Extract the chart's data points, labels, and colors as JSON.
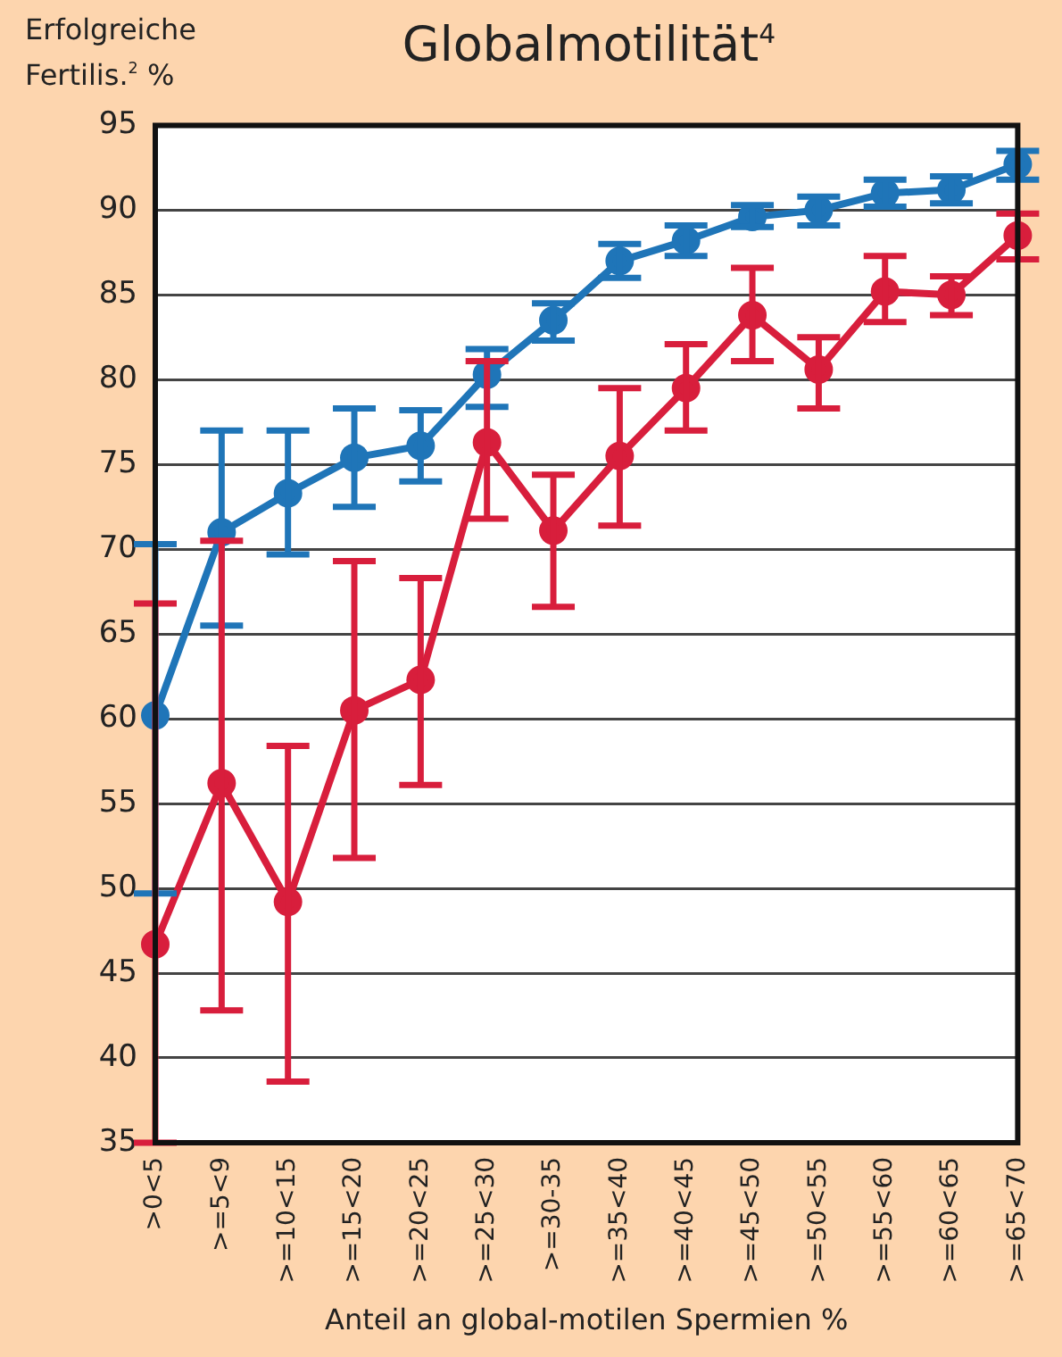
{
  "chart_data": {
    "type": "line",
    "title": "Globalmotilität$^{4}$",
    "ylabel": "Erfolgreiche Fertilis.$^{2}$ %",
    "xlabel": "Anteil an global-motilen Spermien %",
    "categories": [
      ">0<5",
      ">=5<9",
      ">=10<15",
      ">=15<20",
      ">=20<25",
      ">=25<30",
      ">=30-35",
      ">=35<40",
      ">=40<45",
      ">=45<50",
      ">=50<55",
      ">=55<60",
      ">=60<65",
      ">=65<70"
    ],
    "series": [
      {
        "color": "#1f75b8",
        "values": [
          60.2,
          71,
          73.3,
          75.4,
          76.1,
          80.3,
          83.5,
          87,
          88.2,
          89.6,
          90,
          91,
          91.2,
          92.7
        ],
        "errors": [
          [
            49.7,
            70.3
          ],
          [
            65.5,
            77
          ],
          [
            69.7,
            77
          ],
          [
            72.5,
            78.3
          ],
          [
            74,
            78.2
          ],
          [
            78.4,
            81.8
          ],
          [
            82.3,
            84.5
          ],
          [
            86,
            88
          ],
          [
            87.3,
            89.1
          ],
          [
            89,
            90.3
          ],
          [
            89.1,
            90.8
          ],
          [
            90.2,
            91.8
          ],
          [
            90.4,
            92
          ],
          [
            91.8,
            93.5
          ]
        ]
      },
      {
        "color": "#d81e3c",
        "values": [
          46.7,
          56.2,
          49.2,
          60.5,
          62.3,
          76.3,
          71.1,
          75.5,
          79.5,
          83.8,
          80.6,
          85.2,
          85,
          88.5
        ],
        "errors": [
          [
            35,
            66.8
          ],
          [
            42.8,
            70.5
          ],
          [
            38.6,
            58.4
          ],
          [
            51.8,
            69.3
          ],
          [
            56.1,
            68.3
          ],
          [
            71.8,
            81.1
          ],
          [
            66.6,
            74.4
          ],
          [
            71.4,
            79.5
          ],
          [
            77,
            82.1
          ],
          [
            81.1,
            86.6
          ],
          [
            78.3,
            82.5
          ],
          [
            83.4,
            87.3
          ],
          [
            83.8,
            86.1
          ],
          [
            87.1,
            89.8
          ]
        ]
      }
    ],
    "ylim": [
      35,
      95
    ],
    "yticks": [
      35,
      40,
      45,
      50,
      55,
      60,
      65,
      70,
      75,
      80,
      85,
      90,
      95
    ],
    "grid": "y",
    "legend": false,
    "marker": "circle"
  }
}
